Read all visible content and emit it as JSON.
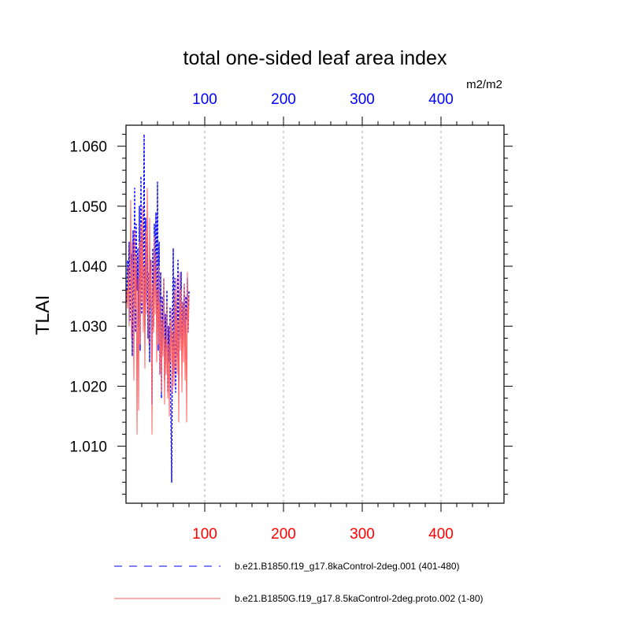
{
  "chart_data": {
    "type": "line",
    "title": "total one-sided leaf area index",
    "units": "m2/m2",
    "ylabel": "TLAI",
    "xlabel": "",
    "xlim": [
      0,
      480
    ],
    "ylim": [
      1.0005,
      1.0635
    ],
    "x_ticks": [
      100,
      200,
      300,
      400
    ],
    "x_tick_labels": [
      "100",
      "200",
      "300",
      "400"
    ],
    "y_ticks": [
      1.01,
      1.02,
      1.03,
      1.04,
      1.05,
      1.06
    ],
    "y_tick_labels": [
      "1.010",
      "1.020",
      "1.030",
      "1.040",
      "1.050",
      "1.060"
    ],
    "grid": "vertical-dashed",
    "legend_position": "bottom",
    "top_axis_color": "#0000ff",
    "bottom_axis_color": "#ff0000",
    "series": [
      {
        "name": "b.e21.B1850.f19_g17.8kaControl-2deg.001 (401-480)",
        "color": "#0000ff",
        "style": "dashed",
        "x": [
          1,
          2,
          3,
          4,
          5,
          6,
          7,
          8,
          9,
          10,
          11,
          12,
          13,
          14,
          15,
          16,
          17,
          18,
          19,
          20,
          21,
          22,
          23,
          24,
          25,
          26,
          27,
          28,
          29,
          30,
          31,
          32,
          33,
          34,
          35,
          36,
          37,
          38,
          39,
          40,
          41,
          42,
          43,
          44,
          45,
          46,
          47,
          48,
          49,
          50,
          51,
          52,
          53,
          54,
          55,
          56,
          57,
          58,
          59,
          60,
          61,
          62,
          63,
          64,
          65,
          66,
          67,
          68,
          69,
          70,
          71,
          72,
          73,
          74,
          75,
          76,
          77,
          78,
          79,
          80
        ],
        "values": [
          1.034,
          1.041,
          1.036,
          1.044,
          1.031,
          1.038,
          1.042,
          1.025,
          1.046,
          1.032,
          1.053,
          1.029,
          1.047,
          1.036,
          1.043,
          1.03,
          1.05,
          1.026,
          1.055,
          1.032,
          1.045,
          1.038,
          1.062,
          1.03,
          1.048,
          1.034,
          1.044,
          1.028,
          1.039,
          1.024,
          1.041,
          1.035,
          1.017,
          1.043,
          1.03,
          1.047,
          1.038,
          1.049,
          1.031,
          1.054,
          1.026,
          1.044,
          1.022,
          1.039,
          1.018,
          1.035,
          1.028,
          1.038,
          1.021,
          1.032,
          1.026,
          1.036,
          1.019,
          1.03,
          1.024,
          1.033,
          1.015,
          1.004,
          1.029,
          1.043,
          1.022,
          1.038,
          1.019,
          1.034,
          1.025,
          1.041,
          1.021,
          1.036,
          1.028,
          1.039,
          1.026,
          1.034,
          1.03,
          1.037,
          1.027,
          1.035,
          1.031,
          1.038,
          1.029,
          1.036
        ]
      },
      {
        "name": "b.e21.B1850G.f19_g17.8.5kaControl-2deg.proto.002 (1-80)",
        "color": "#ff6060",
        "style": "solid",
        "x": [
          1,
          2,
          3,
          4,
          5,
          6,
          7,
          8,
          9,
          10,
          11,
          12,
          13,
          14,
          15,
          16,
          17,
          18,
          19,
          20,
          21,
          22,
          23,
          24,
          25,
          26,
          27,
          28,
          29,
          30,
          31,
          32,
          33,
          34,
          35,
          36,
          37,
          38,
          39,
          40,
          41,
          42,
          43,
          44,
          45,
          46,
          47,
          48,
          49,
          50,
          51,
          52,
          53,
          54,
          55,
          56,
          57,
          58,
          59,
          60,
          61,
          62,
          63,
          64,
          65,
          66,
          67,
          68,
          69,
          70,
          71,
          72,
          73,
          74,
          75,
          76,
          77,
          78,
          79,
          80
        ],
        "values": [
          1.036,
          1.033,
          1.04,
          1.03,
          1.035,
          1.051,
          1.028,
          1.044,
          1.036,
          1.021,
          1.046,
          1.033,
          1.042,
          1.012,
          1.038,
          1.016,
          1.044,
          1.027,
          1.047,
          1.034,
          1.05,
          1.029,
          1.04,
          1.023,
          1.046,
          1.032,
          1.053,
          1.038,
          1.027,
          1.048,
          1.033,
          1.041,
          1.012,
          1.037,
          1.029,
          1.045,
          1.032,
          1.042,
          1.024,
          1.036,
          1.027,
          1.04,
          1.022,
          1.034,
          1.019,
          1.031,
          1.025,
          1.038,
          1.017,
          1.028,
          1.022,
          1.034,
          1.018,
          1.027,
          1.015,
          1.031,
          1.024,
          1.033,
          1.019,
          1.029,
          1.02,
          1.036,
          1.023,
          1.038,
          1.022,
          1.031,
          1.014,
          1.039,
          1.026,
          1.036,
          1.019,
          1.034,
          1.024,
          1.037,
          1.021,
          1.033,
          1.014,
          1.039,
          1.029,
          1.035
        ]
      }
    ]
  }
}
